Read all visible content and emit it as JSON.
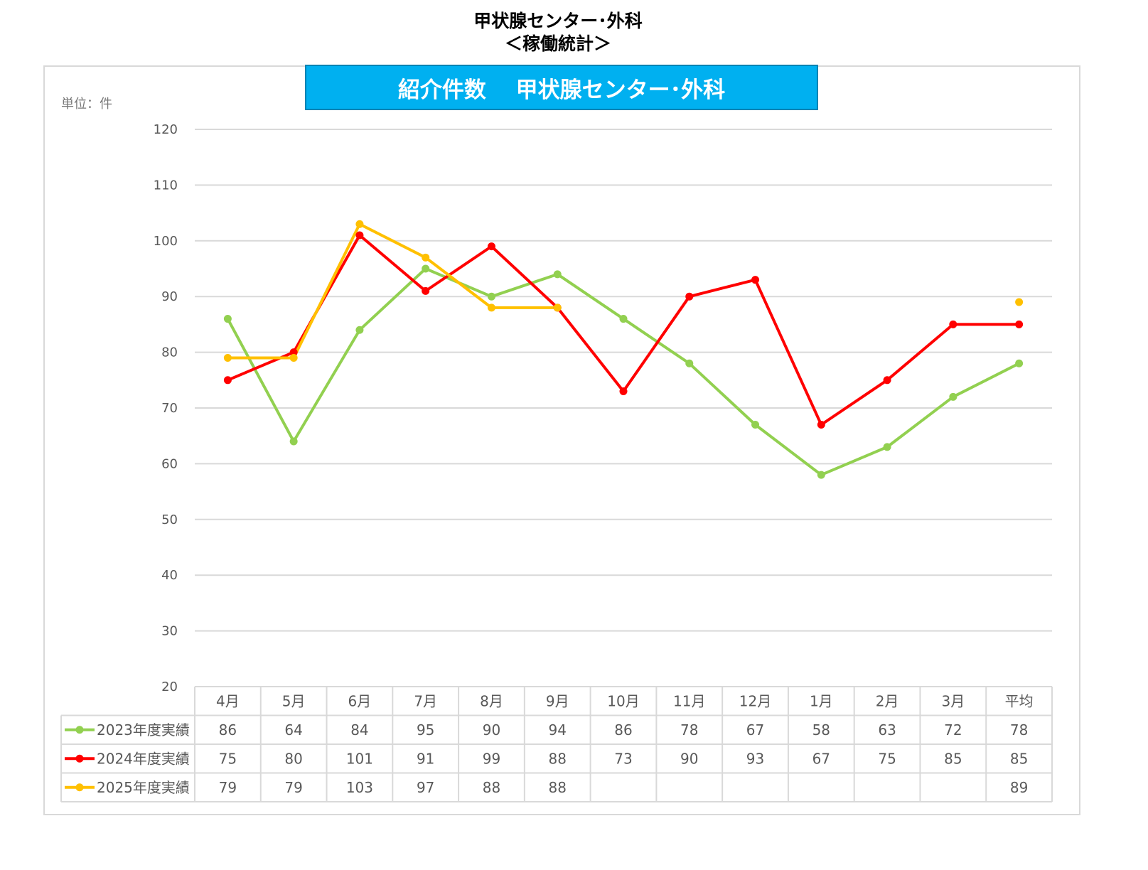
{
  "header": {
    "title_line1": "甲状腺センター･外科",
    "title_line2": "＜稼働統計＞"
  },
  "chart_data": {
    "type": "line",
    "title": "紹介件数　 甲状腺センター･外科",
    "unit_label": "単位：件",
    "categories": [
      "4月",
      "5月",
      "6月",
      "7月",
      "8月",
      "9月",
      "10月",
      "11月",
      "12月",
      "1月",
      "2月",
      "3月",
      "平均"
    ],
    "ylim": [
      20,
      120
    ],
    "yticks": [
      120,
      110,
      100,
      90,
      80,
      70,
      60,
      50,
      40,
      30,
      20
    ],
    "grid": true,
    "legend": "data-table-below",
    "series": [
      {
        "name": "2023年度実績",
        "color": "#92d050",
        "values": [
          86,
          64,
          84,
          95,
          90,
          94,
          86,
          78,
          67,
          58,
          63,
          72,
          78
        ]
      },
      {
        "name": "2024年度実績",
        "color": "#ff0000",
        "values": [
          75,
          80,
          101,
          91,
          99,
          88,
          73,
          90,
          93,
          67,
          75,
          85,
          85
        ]
      },
      {
        "name": "2025年度実績",
        "color": "#ffc000",
        "values": [
          79,
          79,
          103,
          97,
          88,
          88,
          null,
          null,
          null,
          null,
          null,
          null,
          89
        ]
      }
    ]
  }
}
